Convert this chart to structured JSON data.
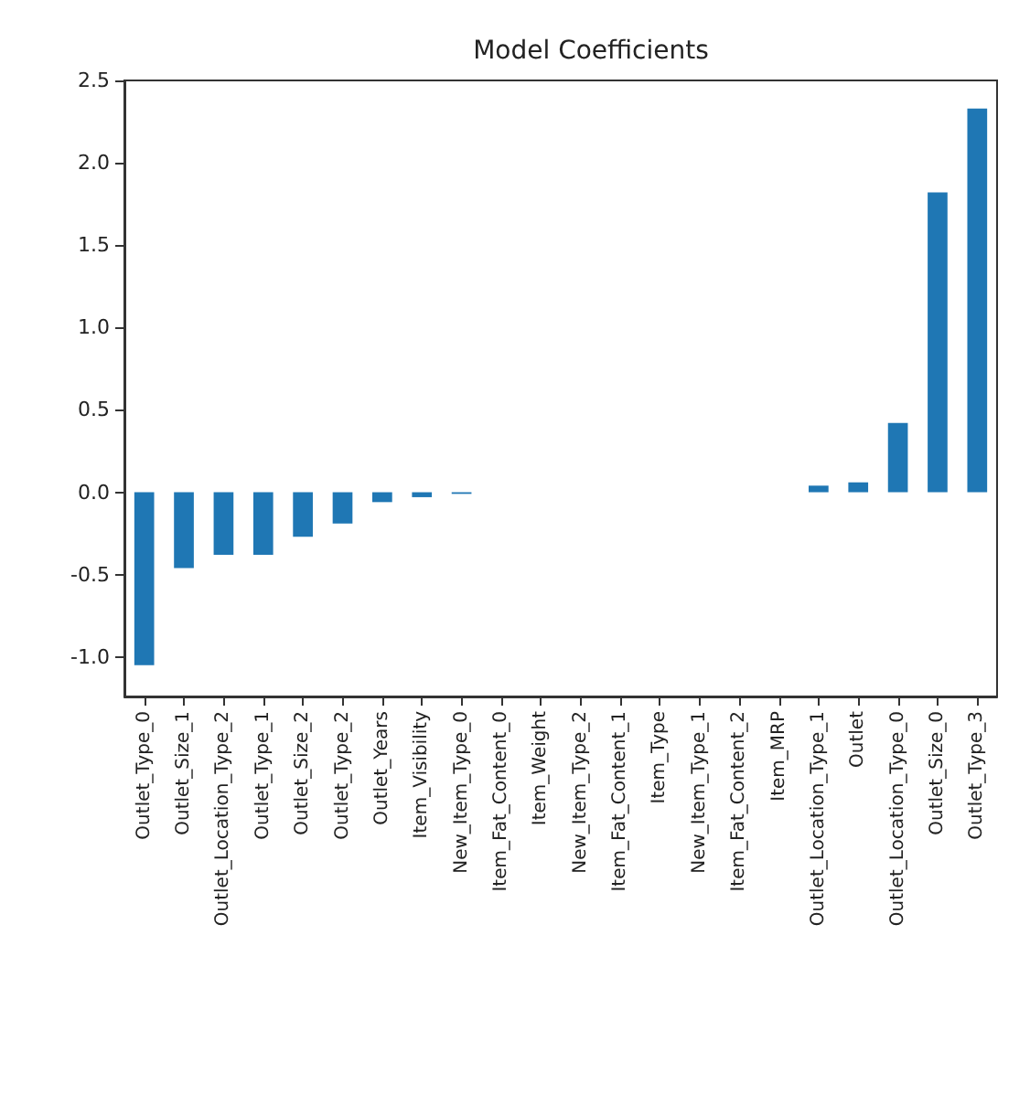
{
  "chart_data": {
    "type": "bar",
    "title": "Model Coefficients",
    "categories": [
      "Outlet_Type_0",
      "Outlet_Size_1",
      "Outlet_Location_Type_2",
      "Outlet_Type_1",
      "Outlet_Size_2",
      "Outlet_Type_2",
      "Outlet_Years",
      "Item_Visibility",
      "New_Item_Type_0",
      "Item_Fat_Content_0",
      "Item_Weight",
      "New_Item_Type_2",
      "Item_Fat_Content_1",
      "Item_Type",
      "New_Item_Type_1",
      "Item_Fat_Content_2",
      "Item_MRP",
      "Outlet_Location_Type_1",
      "Outlet",
      "Outlet_Location_Type_0",
      "Outlet_Size_0",
      "Outlet_Type_3"
    ],
    "values": [
      -1.05,
      -0.46,
      -0.38,
      -0.38,
      -0.27,
      -0.19,
      -0.06,
      -0.03,
      -0.01,
      0,
      0,
      0,
      0,
      0,
      0,
      0,
      0,
      0.04,
      0.06,
      0.42,
      1.82,
      2.33
    ],
    "color": "#1f77b4",
    "ylim": [
      -1.24,
      2.5
    ],
    "yticks": [
      {
        "value": -1,
        "label": "-1.0"
      },
      -0.5,
      {
        "value": 0,
        "label": "0.0"
      },
      0.5,
      {
        "value": 1,
        "label": "1.0"
      },
      1.5,
      {
        "value": 2,
        "label": "2.0"
      },
      2.5
    ],
    "grid": false
  }
}
